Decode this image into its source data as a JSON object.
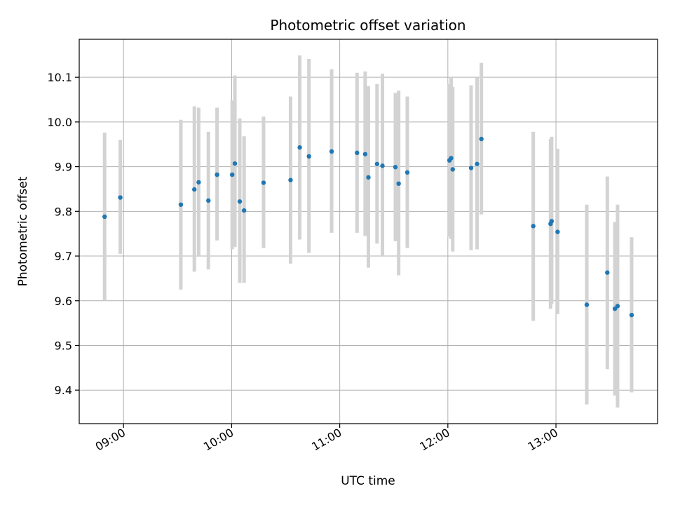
{
  "chart_data": {
    "type": "scatter",
    "title": "Photometric offset variation",
    "xlabel": "UTC time",
    "ylabel": "Photometric offset",
    "x_unit": "hours (UTC)",
    "xlim": [
      8.59,
      13.94
    ],
    "ylim": [
      9.325,
      10.185
    ],
    "grid": true,
    "x_ticks": [
      {
        "value": 9,
        "label": "09:00"
      },
      {
        "value": 10,
        "label": "10:00"
      },
      {
        "value": 11,
        "label": "11:00"
      },
      {
        "value": 12,
        "label": "12:00"
      },
      {
        "value": 13,
        "label": "13:00"
      }
    ],
    "y_ticks": [
      {
        "value": 9.4,
        "label": "9.4"
      },
      {
        "value": 9.5,
        "label": "9.5"
      },
      {
        "value": 9.6,
        "label": "9.6"
      },
      {
        "value": 9.7,
        "label": "9.7"
      },
      {
        "value": 9.8,
        "label": "9.8"
      },
      {
        "value": 9.9,
        "label": "9.9"
      },
      {
        "value": 10.0,
        "label": "10.0"
      },
      {
        "value": 10.1,
        "label": "10.1"
      }
    ],
    "point_color": "#1f77b4",
    "errorbar_color": "#d3d3d3",
    "series": [
      {
        "name": "offset",
        "points": [
          {
            "x": 8.825,
            "y": 9.788,
            "lo": 9.6,
            "hi": 9.976
          },
          {
            "x": 8.97,
            "y": 9.831,
            "lo": 9.705,
            "hi": 9.96
          },
          {
            "x": 9.53,
            "y": 9.815,
            "lo": 9.625,
            "hi": 10.005
          },
          {
            "x": 9.655,
            "y": 9.849,
            "lo": 9.665,
            "hi": 10.035
          },
          {
            "x": 9.695,
            "y": 9.865,
            "lo": 9.7,
            "hi": 10.032
          },
          {
            "x": 9.785,
            "y": 9.824,
            "lo": 9.67,
            "hi": 9.978
          },
          {
            "x": 9.865,
            "y": 9.882,
            "lo": 9.735,
            "hi": 10.032
          },
          {
            "x": 10.005,
            "y": 9.882,
            "lo": 9.715,
            "hi": 10.048
          },
          {
            "x": 10.03,
            "y": 9.907,
            "lo": 9.72,
            "hi": 10.104
          },
          {
            "x": 10.075,
            "y": 9.822,
            "lo": 9.64,
            "hi": 10.008
          },
          {
            "x": 10.115,
            "y": 9.802,
            "lo": 9.64,
            "hi": 9.968
          },
          {
            "x": 10.295,
            "y": 9.864,
            "lo": 9.718,
            "hi": 10.012
          },
          {
            "x": 10.545,
            "y": 9.87,
            "lo": 9.683,
            "hi": 10.057
          },
          {
            "x": 10.63,
            "y": 9.943,
            "lo": 9.737,
            "hi": 10.149
          },
          {
            "x": 10.715,
            "y": 9.923,
            "lo": 9.707,
            "hi": 10.141
          },
          {
            "x": 10.925,
            "y": 9.934,
            "lo": 9.752,
            "hi": 10.118
          },
          {
            "x": 11.16,
            "y": 9.931,
            "lo": 9.752,
            "hi": 10.11
          },
          {
            "x": 11.235,
            "y": 9.928,
            "lo": 9.745,
            "hi": 10.113
          },
          {
            "x": 11.265,
            "y": 9.876,
            "lo": 9.674,
            "hi": 10.08
          },
          {
            "x": 11.345,
            "y": 9.906,
            "lo": 9.728,
            "hi": 10.085
          },
          {
            "x": 11.395,
            "y": 9.902,
            "lo": 9.7,
            "hi": 10.108
          },
          {
            "x": 11.515,
            "y": 9.899,
            "lo": 9.733,
            "hi": 10.065
          },
          {
            "x": 11.545,
            "y": 9.862,
            "lo": 9.657,
            "hi": 10.07
          },
          {
            "x": 11.625,
            "y": 9.887,
            "lo": 9.718,
            "hi": 10.057
          },
          {
            "x": 12.015,
            "y": 9.914,
            "lo": 9.743,
            "hi": 10.085
          },
          {
            "x": 12.03,
            "y": 9.919,
            "lo": 9.738,
            "hi": 10.1
          },
          {
            "x": 12.045,
            "y": 9.894,
            "lo": 9.71,
            "hi": 10.078
          },
          {
            "x": 12.215,
            "y": 9.897,
            "lo": 9.713,
            "hi": 10.082
          },
          {
            "x": 12.27,
            "y": 9.906,
            "lo": 9.715,
            "hi": 10.1
          },
          {
            "x": 12.31,
            "y": 9.962,
            "lo": 9.793,
            "hi": 10.132
          },
          {
            "x": 12.79,
            "y": 9.767,
            "lo": 9.555,
            "hi": 9.978
          },
          {
            "x": 12.95,
            "y": 9.772,
            "lo": 9.582,
            "hi": 9.962
          },
          {
            "x": 12.96,
            "y": 9.778,
            "lo": 9.593,
            "hi": 9.967
          },
          {
            "x": 13.015,
            "y": 9.754,
            "lo": 9.57,
            "hi": 9.94
          },
          {
            "x": 13.285,
            "y": 9.591,
            "lo": 9.368,
            "hi": 9.815
          },
          {
            "x": 13.475,
            "y": 9.663,
            "lo": 9.447,
            "hi": 9.878
          },
          {
            "x": 13.545,
            "y": 9.582,
            "lo": 9.388,
            "hi": 9.776
          },
          {
            "x": 13.57,
            "y": 9.588,
            "lo": 9.361,
            "hi": 9.815
          },
          {
            "x": 13.7,
            "y": 9.568,
            "lo": 9.395,
            "hi": 9.742
          }
        ]
      }
    ]
  }
}
